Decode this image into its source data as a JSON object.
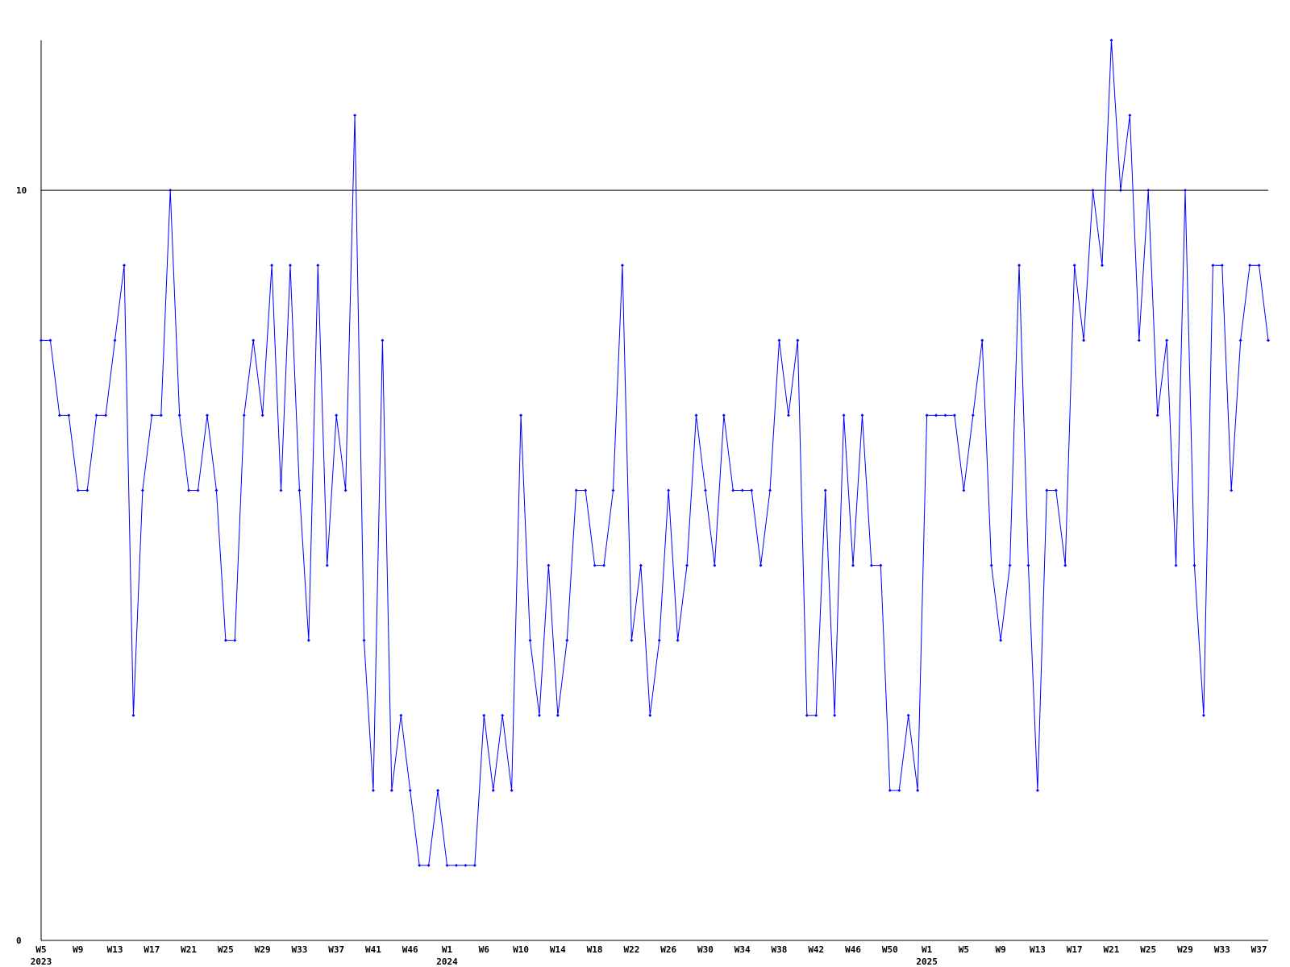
{
  "chart_data": {
    "type": "line",
    "categories": [
      "W5",
      null,
      null,
      null,
      "W9",
      null,
      null,
      null,
      "W13",
      null,
      null,
      null,
      "W17",
      null,
      null,
      null,
      "W21",
      null,
      null,
      null,
      "W25",
      null,
      null,
      null,
      "W29",
      null,
      null,
      null,
      "W33",
      null,
      null,
      null,
      "W37",
      null,
      null,
      null,
      "W41",
      null,
      null,
      null,
      "W46",
      null,
      null,
      null,
      "W1",
      null,
      null,
      null,
      "W6",
      null,
      null,
      null,
      "W10",
      null,
      null,
      null,
      "W14",
      null,
      null,
      null,
      "W18",
      null,
      null,
      null,
      "W22",
      null,
      null,
      null,
      "W26",
      null,
      null,
      null,
      "W30",
      null,
      null,
      null,
      "W34",
      null,
      null,
      null,
      "W38",
      null,
      null,
      null,
      "W42",
      null,
      null,
      null,
      "W46",
      null,
      null,
      null,
      "W50",
      null,
      null,
      null,
      "W1",
      null,
      null,
      null,
      "W5",
      null,
      null,
      null,
      "W9",
      null,
      null,
      null,
      "W13",
      null,
      null,
      null,
      "W17",
      null,
      null,
      null,
      "W21",
      null,
      null,
      null,
      "W25",
      null,
      null,
      null,
      "W29",
      null,
      null,
      null,
      "W33",
      null,
      null,
      null,
      "W37",
      null
    ],
    "x_sublabels": [
      "2023",
      null,
      null,
      null,
      null,
      null,
      null,
      null,
      null,
      null,
      null,
      null,
      null,
      null,
      null,
      null,
      null,
      null,
      null,
      null,
      null,
      null,
      null,
      null,
      null,
      null,
      null,
      null,
      null,
      null,
      null,
      null,
      null,
      null,
      null,
      null,
      null,
      null,
      null,
      null,
      null,
      null,
      null,
      null,
      "2024",
      null,
      null,
      null,
      null,
      null,
      null,
      null,
      null,
      null,
      null,
      null,
      null,
      null,
      null,
      null,
      null,
      null,
      null,
      null,
      null,
      null,
      null,
      null,
      null,
      null,
      null,
      null,
      null,
      null,
      null,
      null,
      null,
      null,
      null,
      null,
      null,
      null,
      null,
      null,
      null,
      null,
      null,
      null,
      null,
      null,
      null,
      null,
      null,
      null,
      null,
      null,
      "2025",
      null,
      null,
      null,
      null,
      null,
      null,
      null,
      null,
      null,
      null,
      null,
      null,
      null,
      null,
      null,
      null,
      null,
      null,
      null,
      null,
      null,
      null,
      null,
      null,
      null,
      null,
      null,
      null,
      null,
      null,
      null,
      null,
      null,
      null,
      null,
      null,
      null
    ],
    "series": [
      {
        "color": "#0000ff",
        "values": [
          8,
          8,
          7,
          7,
          6,
          6,
          7,
          7,
          8,
          9,
          3,
          6,
          7,
          7,
          10,
          7,
          6,
          6,
          7,
          6,
          4,
          4,
          7,
          8,
          7,
          9,
          6,
          9,
          6,
          4,
          9,
          5,
          7,
          6,
          11,
          4,
          2,
          8,
          2,
          3,
          2,
          1,
          1,
          2,
          1,
          1,
          1,
          1,
          3,
          2,
          3,
          2,
          7,
          4,
          3,
          5,
          3,
          4,
          6,
          6,
          5,
          5,
          6,
          9,
          4,
          5,
          3,
          4,
          6,
          4,
          5,
          7,
          6,
          5,
          7,
          6,
          6,
          6,
          5,
          6,
          8,
          7,
          8,
          3,
          3,
          6,
          3,
          7,
          5,
          7,
          5,
          5,
          2,
          2,
          3,
          2,
          7,
          7,
          7,
          7,
          6,
          7,
          8,
          5,
          4,
          5,
          9,
          5,
          2,
          6,
          6,
          5,
          9,
          8,
          10,
          9,
          12,
          10,
          11,
          8,
          10,
          7,
          8,
          5,
          10,
          5,
          3,
          9,
          9,
          6,
          8,
          9,
          9,
          8
        ]
      }
    ],
    "ylim": [
      0,
      12
    ],
    "yticks": [
      0,
      10
    ],
    "grid": true
  }
}
